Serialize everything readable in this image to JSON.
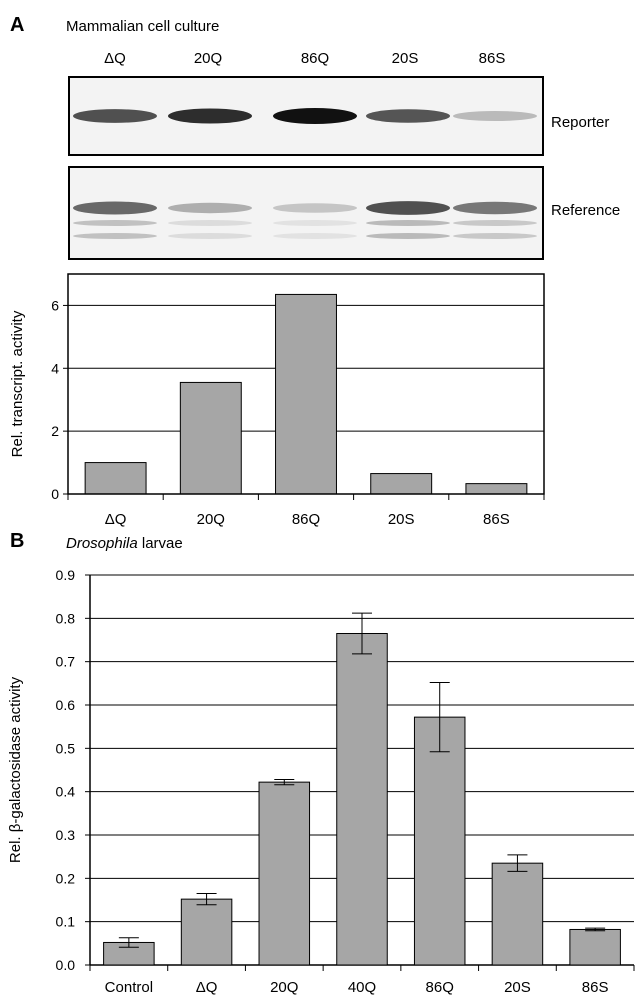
{
  "panel_a": {
    "letter": "A",
    "title": "Mammalian cell culture",
    "lanes": [
      "ΔQ",
      "20Q",
      "86Q",
      "20S",
      "86S"
    ],
    "blots": [
      {
        "label": "Reporter",
        "band_intensity": [
          0.72,
          0.88,
          1.0,
          0.7,
          0.25
        ]
      },
      {
        "label": "Reference",
        "band_intensity": [
          0.62,
          0.3,
          0.2,
          0.72,
          0.55
        ]
      }
    ]
  },
  "panel_b": {
    "letter": "B",
    "title_italic": "Drosophila",
    "title_rest": " larvae"
  },
  "colors": {
    "bar_fill": "#a6a6a6",
    "bar_stroke": "#000000",
    "blot_bg": "#f3f3f3",
    "band": "#111111"
  },
  "chart_data": [
    {
      "type": "bar",
      "title": "",
      "xlabel": "",
      "ylabel": "Rel. transcript. activity",
      "categories": [
        "ΔQ",
        "20Q",
        "86Q",
        "20S",
        "86S"
      ],
      "values": [
        1.0,
        3.55,
        6.35,
        0.65,
        0.33
      ],
      "ylim": [
        0,
        7
      ],
      "yticks": [
        0,
        2,
        4,
        6
      ],
      "grid": true
    },
    {
      "type": "bar",
      "title": "",
      "xlabel": "",
      "ylabel": "Rel. β-galactosidase activity",
      "categories": [
        "Control",
        "ΔQ",
        "20Q",
        "40Q",
        "86Q",
        "20S",
        "86S"
      ],
      "values": [
        0.052,
        0.152,
        0.422,
        0.765,
        0.572,
        0.235,
        0.082
      ],
      "errors": [
        0.011,
        0.013,
        0.006,
        0.047,
        0.08,
        0.019,
        0.003
      ],
      "ylim": [
        0,
        0.9
      ],
      "yticks": [
        "0.0",
        "0.1",
        "0.2",
        "0.3",
        "0.4",
        "0.5",
        "0.6",
        "0.7",
        "0.8",
        "0.9"
      ],
      "grid": true
    }
  ]
}
